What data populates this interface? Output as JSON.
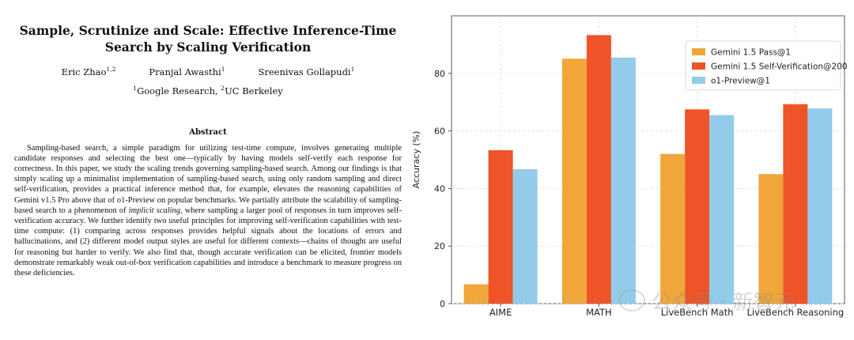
{
  "paper": {
    "title": "Sample, Scrutinize and Scale: Effective Inference-Time Search by Scaling Verification",
    "authors": [
      {
        "name": "Eric Zhao",
        "sup": "1,2"
      },
      {
        "name": "Pranjal Awasthi",
        "sup": "1"
      },
      {
        "name": "Sreenivas Gollapudi",
        "sup": "1"
      }
    ],
    "affiliations": {
      "sup1": "1",
      "name1": "Google Research, ",
      "sup2": "2",
      "name2": "UC Berkeley"
    },
    "abstract_heading": "Abstract",
    "abstract_part1": "Sampling-based search, a simple paradigm for utilizing test-time compute, involves generating multiple candidate responses and selecting the best one—typically by having models self-verify each response for correctness. In this paper, we study the scaling trends governing sampling-based search. Among our findings is that simply scaling up a minimalist implementation of sampling-based search, using only random sampling and direct self-verification, provides a practical inference method that, for example, elevates the reasoning capabilities of Gemini v1.5 Pro above that of o1-Preview on popular benchmarks. We partially attribute the scalability of sampling-based search to a phenomenon of ",
    "abstract_emph": "implicit scaling",
    "abstract_part2": ", where sampling a larger pool of responses in turn improves self-verification accuracy. We further identify two useful principles for improving self-verification capabilities with test-time compute: (1) comparing across responses provides helpful signals about the locations of errors and hallucinations, and (2) different model output styles are useful for different contexts—chains of thought are useful for reasoning but harder to verify. We also find that, though accurate verification can be elicited, frontier models demonstrate remarkably weak out-of-box verification capabilities and introduce a benchmark to measure progress on these deficiencies."
  },
  "chart_data": {
    "type": "bar",
    "categories": [
      "AIME",
      "MATH",
      "LiveBench Math",
      "LiveBench Reasoning"
    ],
    "series": [
      {
        "name": "Gemini 1.5 Pass@1",
        "color": "#F0A63A",
        "values": [
          6.7,
          85.1,
          52.0,
          45.0
        ]
      },
      {
        "name": "Gemini 1.5 Self-Verification@200",
        "color": "#EE5428",
        "values": [
          53.3,
          93.3,
          67.5,
          69.3
        ]
      },
      {
        "name": "o1-Preview@1",
        "color": "#93CCEA",
        "values": [
          46.7,
          85.5,
          65.5,
          67.8
        ]
      }
    ],
    "ylabel": "Accuracy (%)",
    "xlabel": "",
    "ylim": [
      0,
      100
    ],
    "yticks": [
      0,
      20,
      40,
      60,
      80
    ],
    "grid": true,
    "legend_position": "top-right"
  },
  "watermark": {
    "text": "公众号 · 新智元",
    "icon": "wechat-icon"
  }
}
